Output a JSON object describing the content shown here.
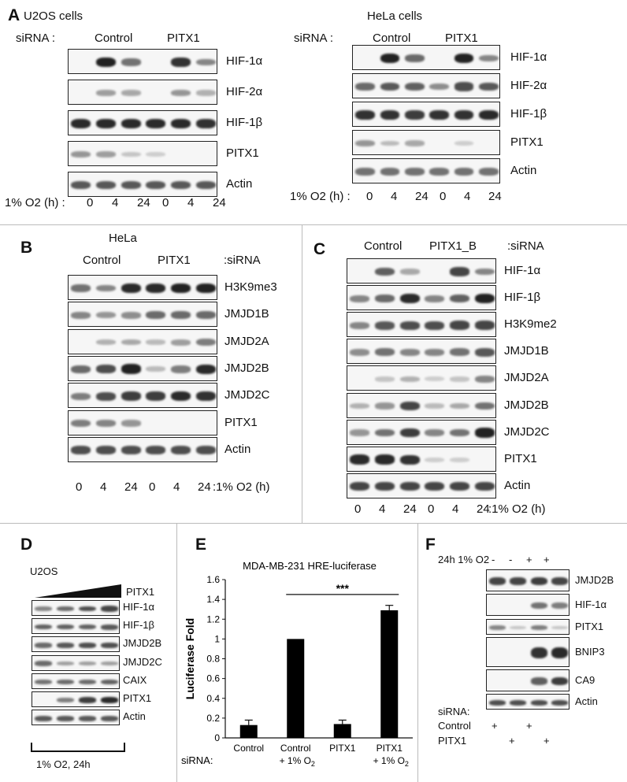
{
  "panelA": {
    "letter": "A",
    "u2os": {
      "title": "U2OS cells",
      "sirna_label": "siRNA :",
      "group1": "Control",
      "group2": "PITX1",
      "rows": [
        "HIF-1α",
        "HIF-2α",
        "HIF-1β",
        "PITX1",
        "Actin"
      ],
      "o2_label": "1% O2 (h) :",
      "times": [
        "0",
        "4",
        "24",
        "0",
        "4",
        "24"
      ]
    },
    "hela": {
      "title": "HeLa cells",
      "sirna_label": "siRNA :",
      "group1": "Control",
      "group2": "PITX1",
      "rows": [
        "HIF-1α",
        "HIF-2α",
        "HIF-1β",
        "PITX1",
        "Actin"
      ],
      "o2_label": "1% O2 (h) :",
      "times": [
        "0",
        "4",
        "24",
        "0",
        "4",
        "24"
      ]
    }
  },
  "panelB": {
    "letter": "B",
    "title": "HeLa",
    "group1": "Control",
    "group2": "PITX1",
    "sirna_suffix": ":siRNA",
    "rows": [
      "H3K9me3",
      "JMJD1B",
      "JMJD2A",
      "JMJD2B",
      "JMJD2C",
      "PITX1",
      "Actin"
    ],
    "times": [
      "0",
      "4",
      "24",
      "0",
      "4",
      "24"
    ],
    "o2_suffix": ":1% O2 (h)"
  },
  "panelC": {
    "letter": "C",
    "group1": "Control",
    "group2": "PITX1_B",
    "sirna_suffix": ":siRNA",
    "rows": [
      "HIF-1α",
      "HIF-1β",
      "H3K9me2",
      "JMJD1B",
      "JMJD2A",
      "JMJD2B",
      "JMJD2C",
      "PITX1",
      "Actin"
    ],
    "times": [
      "0",
      "4",
      "24",
      "0",
      "4",
      "24"
    ],
    "o2_suffix": ":1% O2 (h)"
  },
  "panelD": {
    "letter": "D",
    "title": "U2OS",
    "gradient_label": "PITX1",
    "rows": [
      "HIF-1α",
      "HIF-1β",
      "JMJD2B",
      "JMJD2C",
      "CAIX",
      "PITX1",
      "Actin"
    ],
    "condition": "1% O2, 24h"
  },
  "panelE": {
    "letter": "E",
    "chart_data": {
      "type": "bar",
      "title": "MDA-MB-231 HRE-luciferase",
      "ylabel": "Luciferase Fold",
      "xlabel": "",
      "sirna_label": "siRNA:",
      "categories": [
        "Control",
        "Control + 1% O2",
        "PITX1",
        "PITX1 + 1% O2"
      ],
      "category_lines": [
        [
          "Control",
          ""
        ],
        [
          "Control",
          "+ 1% O"
        ],
        [
          "PITX1",
          ""
        ],
        [
          "PITX1",
          "+ 1% O"
        ]
      ],
      "values": [
        0.13,
        1.0,
        0.14,
        1.29
      ],
      "errors": [
        0.05,
        0.005,
        0.04,
        0.05
      ],
      "ylim": [
        0,
        1.6
      ],
      "yticks": [
        "0",
        "0.2",
        "0.4",
        "0.6",
        "0.8",
        "1",
        "1.2",
        "1.4",
        "1.6"
      ],
      "significance": "***",
      "bar_color": "#000000",
      "grid": false
    }
  },
  "panelF": {
    "letter": "F",
    "o2_label": "24h 1% O2",
    "o2_marks": [
      "-",
      "-",
      "+",
      "+"
    ],
    "rows": [
      "JMJD2B",
      "HIF-1α",
      "PITX1",
      "BNIP3",
      "CA9",
      "Actin"
    ],
    "sirna_label": "siRNA:",
    "control_label": "Control",
    "pitx1_label": "PITX1",
    "control_marks": [
      "+",
      "",
      "+",
      ""
    ],
    "pitx1_marks": [
      "",
      "+",
      "",
      "+"
    ]
  }
}
